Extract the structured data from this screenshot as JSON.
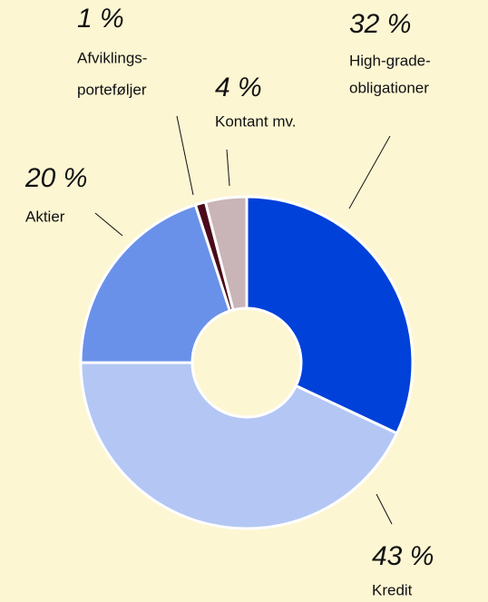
{
  "chart_data": {
    "type": "donut",
    "categories": [
      [
        "High-grade-",
        "obligationer"
      ],
      [
        "Kredit"
      ],
      [
        "Aktier"
      ],
      [
        "Afviklings-",
        "porteføljer"
      ],
      [
        "Kontant mv."
      ]
    ],
    "values": [
      32,
      43,
      20,
      1,
      4
    ],
    "value_labels": [
      "32 %",
      "43 %",
      "20 %",
      "1 %",
      "4 %"
    ],
    "colors": [
      "#0041d9",
      "#b4c7f4",
      "#6a91e9",
      "#4b0a1a",
      "#c9b4b8"
    ]
  }
}
